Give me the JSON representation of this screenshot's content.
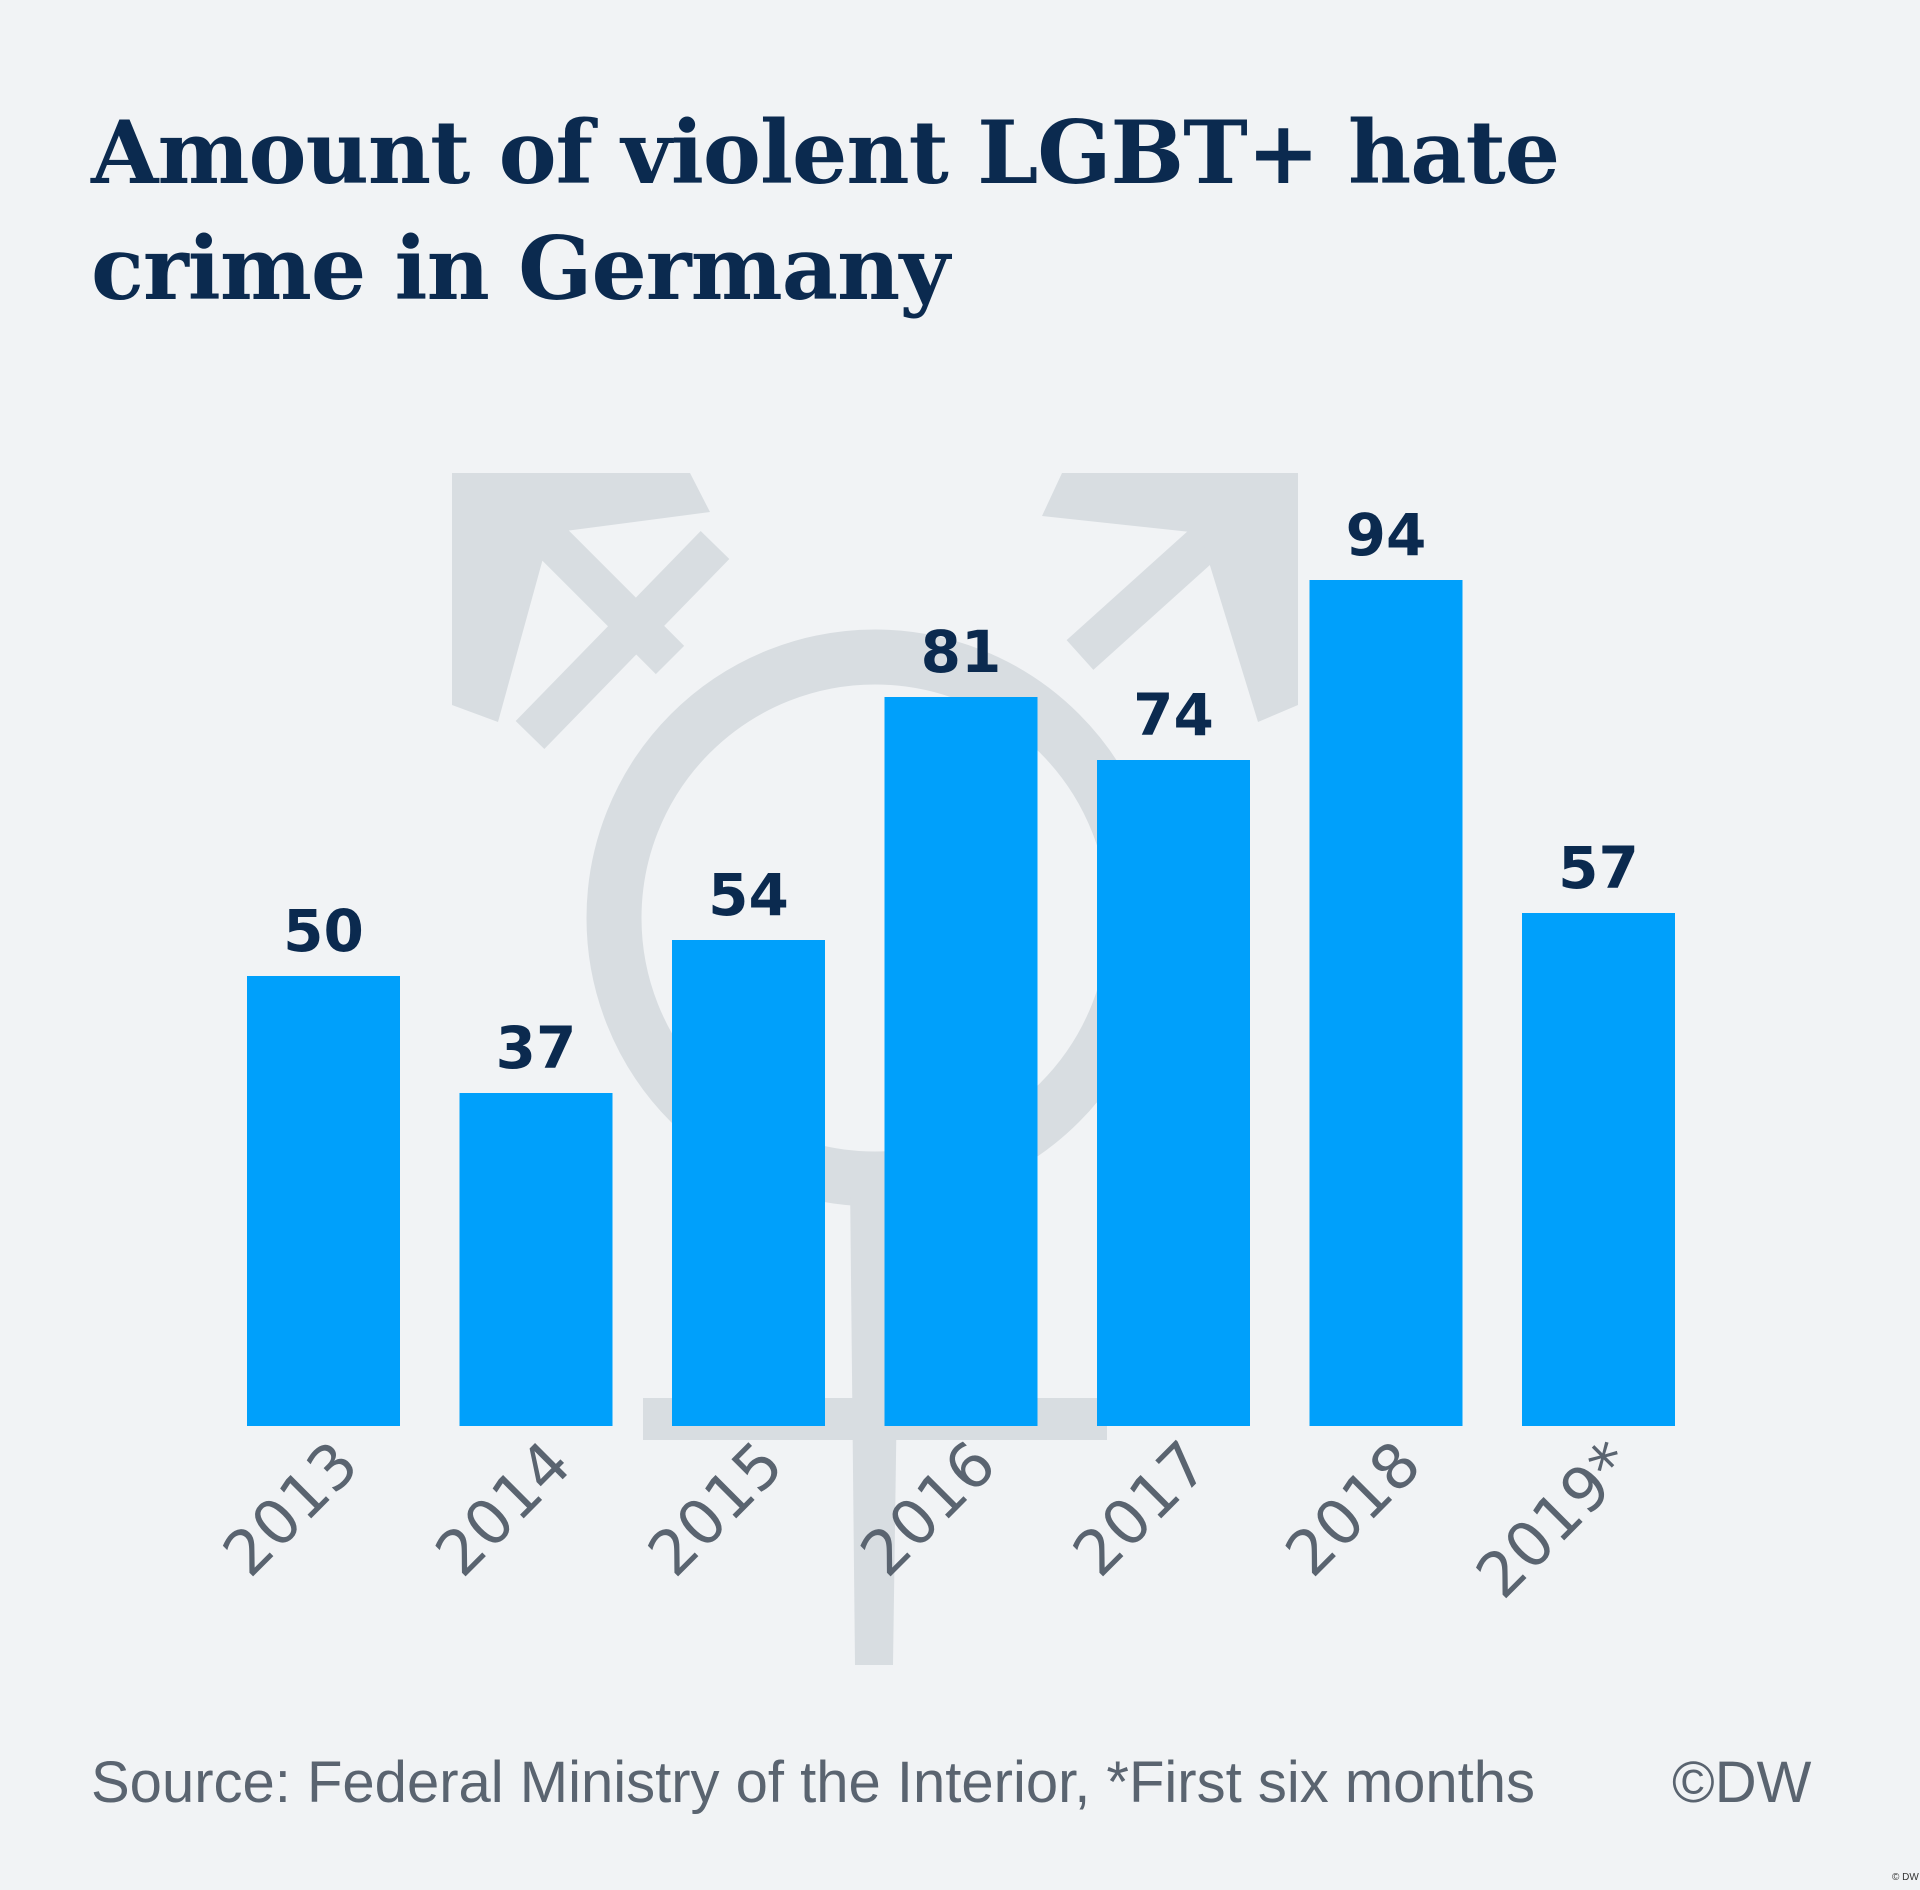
{
  "title": "Amount of violent LGBT+ hate crime in Germany",
  "source": "Source: Federal Ministry of the Interior, *First six months",
  "copyright": "©DW",
  "corner_mark": "© DW",
  "colors": {
    "background": "#f1f3f5",
    "bar": "#00a0fb",
    "title": "#0b2a4f",
    "value_label": "#0b2a4f",
    "tick_label": "#5a6470",
    "symbol": "#d8dde1"
  },
  "background_symbol": "transgender-symbol",
  "chart_data": {
    "type": "bar",
    "title": "Amount of violent LGBT+ hate crime in Germany",
    "categories": [
      "2013",
      "2014",
      "2015",
      "2016",
      "2017",
      "2018",
      "2019*"
    ],
    "values": [
      50,
      37,
      54,
      81,
      74,
      94,
      57
    ],
    "xlabel": "",
    "ylabel": "",
    "ylim": [
      0,
      100
    ],
    "grid": false,
    "legend": "none",
    "data_labels": true,
    "tick_label_rotation": "-45deg"
  }
}
